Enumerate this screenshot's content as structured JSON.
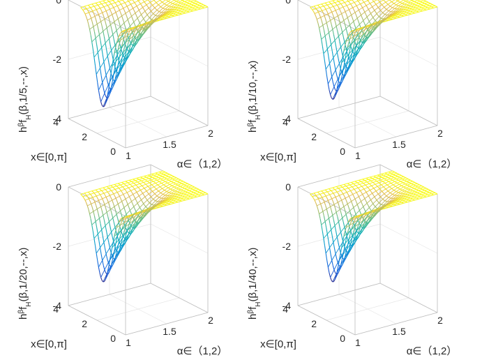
{
  "figure_title": "",
  "chart_data": [
    {
      "type": "surface",
      "title": "",
      "zlabel": "h^βf_H(β,1/5,--,x)",
      "zlabel_parts": {
        "h": "h",
        "sup": "β",
        "f": "f",
        "sub": "H",
        "args": "(β,1/5,--,x)"
      },
      "xlabel": "α∈（1,2）",
      "ylabel": "x∈[0,π]",
      "x_range": [
        1,
        2
      ],
      "y_range": [
        0,
        3.14
      ],
      "zlim": [
        -4,
        0
      ],
      "x_ticks": [
        "1",
        "1.5",
        "2"
      ],
      "y_ticks": [
        "0",
        "2",
        "4"
      ],
      "z_ticks": [
        "0",
        "-2",
        "-4"
      ],
      "min_value": -3.0,
      "min_at": {
        "alpha": 1.0,
        "x": 1.57
      },
      "colormap": "parula",
      "style": "mesh"
    },
    {
      "type": "surface",
      "title": "",
      "zlabel": "h^βf_H(β,1/10,--,x)",
      "zlabel_parts": {
        "h": "h",
        "sup": "β",
        "f": "f",
        "sub": "H",
        "args": "(β,1/10,--,x)"
      },
      "xlabel": "α∈（1,2）",
      "ylabel": "x∈[0,π]",
      "x_range": [
        1,
        2
      ],
      "y_range": [
        0,
        3.14
      ],
      "zlim": [
        -4,
        0
      ],
      "x_ticks": [
        "1",
        "1.5",
        "2"
      ],
      "y_ticks": [
        "0",
        "2",
        "4"
      ],
      "z_ticks": [
        "0",
        "-2",
        "-4"
      ],
      "min_value": -2.75,
      "min_at": {
        "alpha": 1.0,
        "x": 1.57
      },
      "colormap": "parula",
      "style": "mesh"
    },
    {
      "type": "surface",
      "title": "",
      "zlabel": "h^βf_H(β,1/20,--,x)",
      "zlabel_parts": {
        "h": "h",
        "sup": "β",
        "f": "f",
        "sub": "H",
        "args": "(β,1/20,--,x)"
      },
      "xlabel": "α∈（1,2）",
      "ylabel": "x∈[0,π]",
      "x_range": [
        1,
        2
      ],
      "y_range": [
        0,
        3.14
      ],
      "zlim": [
        -4,
        0
      ],
      "x_ticks": [
        "1",
        "1.5",
        "2"
      ],
      "y_ticks": [
        "0",
        "2",
        "4"
      ],
      "z_ticks": [
        "0",
        "-2",
        "-4"
      ],
      "min_value": -2.6,
      "min_at": {
        "alpha": 1.0,
        "x": 1.57
      },
      "colormap": "parula",
      "style": "mesh"
    },
    {
      "type": "surface",
      "title": "",
      "zlabel": "h^βf_H(β,1/40,--,x)",
      "zlabel_parts": {
        "h": "h",
        "sup": "β",
        "f": "f",
        "sub": "H",
        "args": "(β,1/40,--,x)"
      },
      "xlabel": "α∈（1,2）",
      "ylabel": "x∈[0,π]",
      "x_range": [
        1,
        2
      ],
      "y_range": [
        0,
        3.14
      ],
      "zlim": [
        -4,
        0
      ],
      "x_ticks": [
        "1",
        "1.5",
        "2"
      ],
      "y_ticks": [
        "0",
        "2",
        "4"
      ],
      "z_ticks": [
        "0",
        "-2",
        "-4"
      ],
      "min_value": -2.6,
      "min_at": {
        "alpha": 1.0,
        "x": 1.57
      },
      "colormap": "parula",
      "style": "mesh"
    }
  ]
}
